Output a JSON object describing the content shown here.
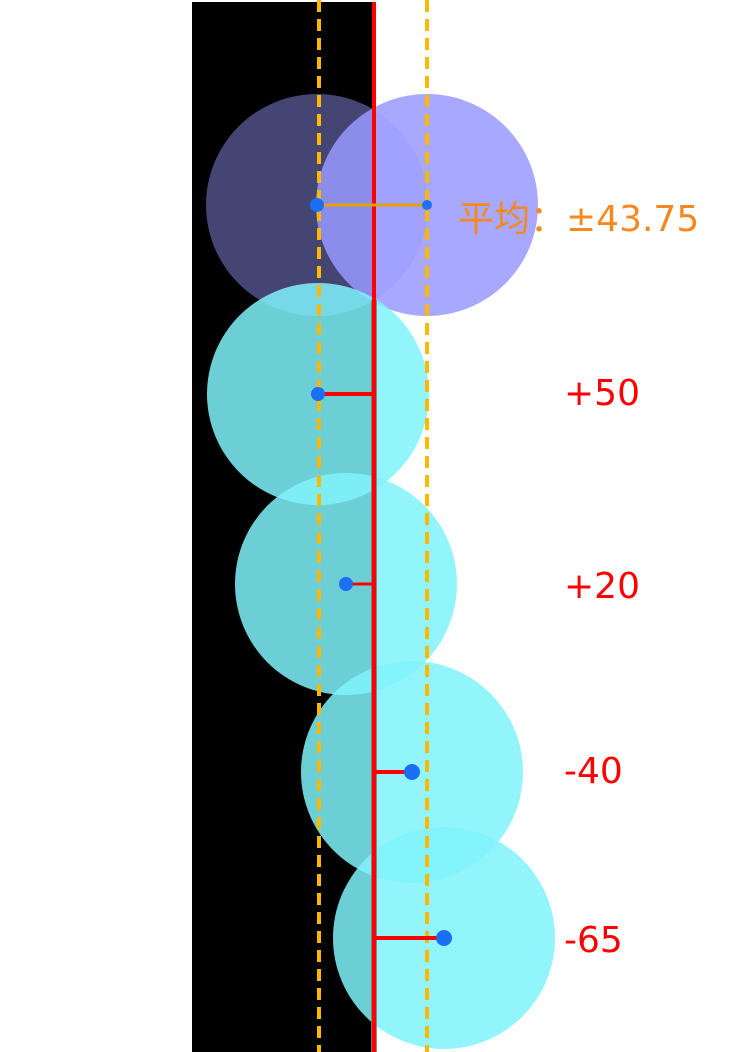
{
  "colors": {
    "background": "#ffffff",
    "black_band": "#000000",
    "center_line": "#ff0000",
    "dashed_bounds": "#ffb700",
    "avg_circle": "#9999ff",
    "sample_circle": "#80f3fb",
    "dot": "#1a6ff2",
    "offset_line": "#ff0000",
    "avg_line": "#e6a000",
    "avg_text": "#f5891f",
    "value_text": "#ff0000"
  },
  "average": {
    "label": "平均：±43.75"
  },
  "samples": [
    {
      "label": "+50"
    },
    {
      "label": "+20"
    },
    {
      "label": "-40"
    },
    {
      "label": "-65"
    }
  ]
}
